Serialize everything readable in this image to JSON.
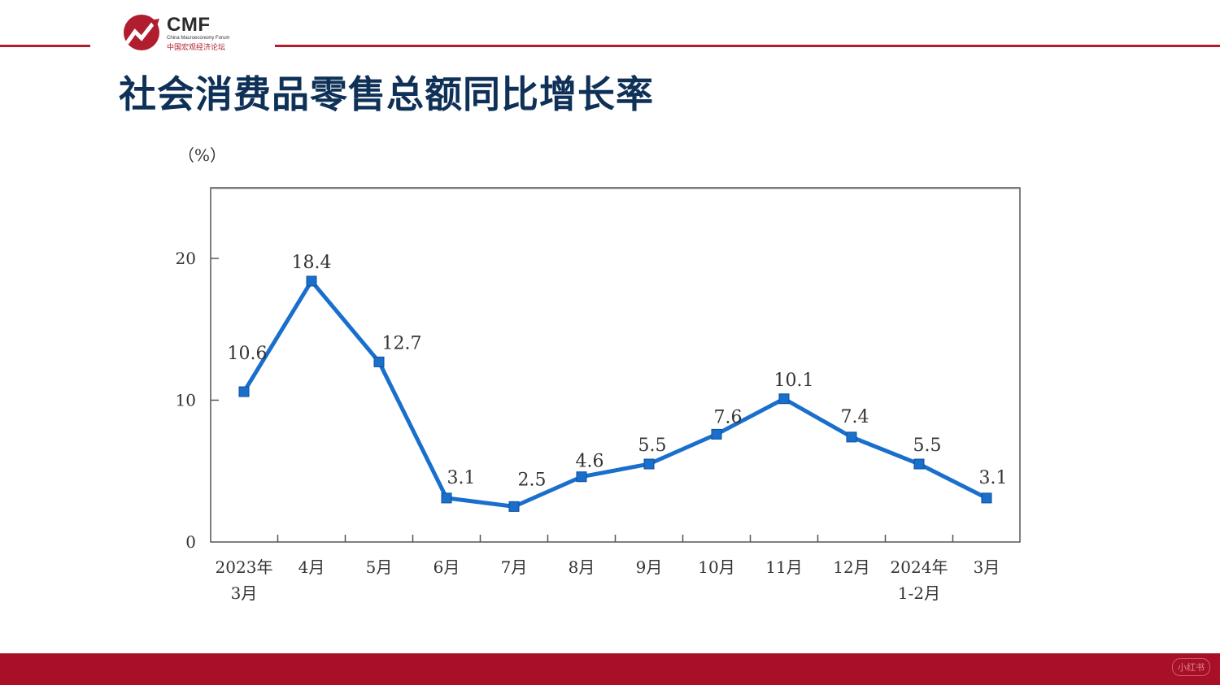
{
  "logo": {
    "name": "CMF",
    "subtitle": "China Macroeconomy Forum",
    "cn_name": "中国宏观经济论坛"
  },
  "title": "社会消费品零售总额同比增长率",
  "colors": {
    "brand_red": "#b01d2e",
    "title_navy": "#0f3157",
    "series_blue": "#1a6fcc",
    "footer_red": "#a90f27"
  },
  "footer": {
    "watermark": "小红书"
  },
  "chart_data": {
    "type": "line",
    "unit": "（%）",
    "categories": [
      [
        "2023年",
        "3月"
      ],
      [
        "4月"
      ],
      [
        "5月"
      ],
      [
        "6月"
      ],
      [
        "7月"
      ],
      [
        "8月"
      ],
      [
        "9月"
      ],
      [
        "10月"
      ],
      [
        "11月"
      ],
      [
        "12月"
      ],
      [
        "2024年",
        "1-2月"
      ],
      [
        "3月"
      ]
    ],
    "series": [
      {
        "values": [
          10.6,
          18.4,
          12.7,
          3.1,
          2.5,
          4.6,
          5.5,
          7.6,
          10.1,
          7.4,
          5.5,
          3.1
        ],
        "labels": [
          "10.6",
          "18.4",
          "12.7",
          "3.1",
          "2.5",
          "4.6",
          "5.5",
          "7.6",
          "10.1",
          "7.4",
          "5.5",
          "3.1"
        ],
        "color": "#1a6fcc",
        "marker": "square"
      }
    ],
    "yticks": [
      0,
      10,
      20
    ],
    "ylim": [
      0,
      25
    ],
    "grid": false,
    "legend": "none"
  }
}
